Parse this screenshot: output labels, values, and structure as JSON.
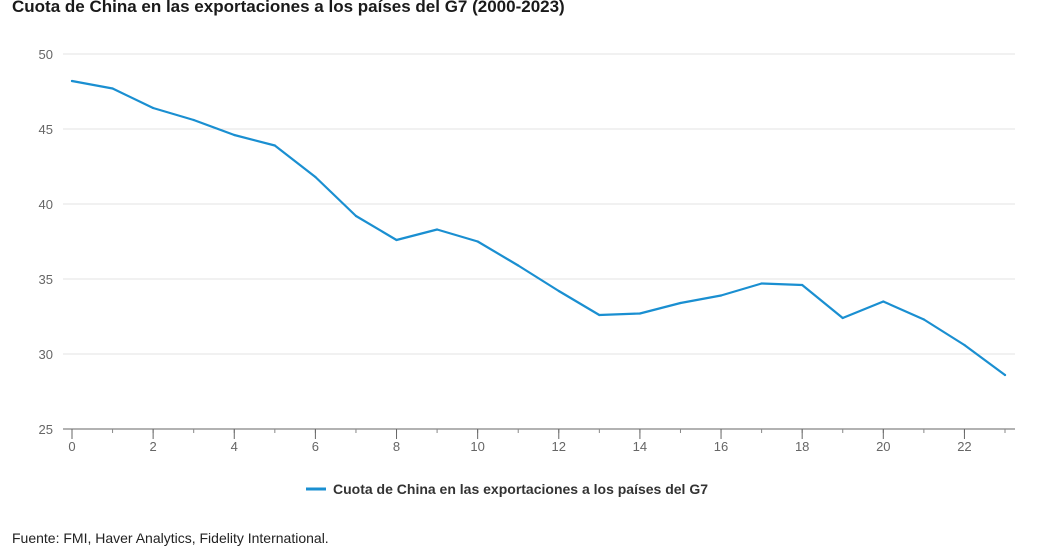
{
  "chart_data": {
    "type": "line",
    "title": "Cuota de China en las exportaciones a los países del G7 (2000-2023)",
    "xlabel": "",
    "ylabel": "",
    "x": [
      0,
      1,
      2,
      3,
      4,
      5,
      6,
      7,
      8,
      9,
      10,
      11,
      12,
      13,
      14,
      15,
      16,
      17,
      18,
      19,
      20,
      21,
      22,
      23
    ],
    "series": [
      {
        "name": "Cuota de China en las exportaciones a los países del G7",
        "color": "#1a8fd1",
        "values": [
          48.2,
          47.7,
          46.4,
          45.6,
          44.6,
          43.9,
          41.8,
          39.2,
          37.6,
          38.3,
          37.5,
          35.9,
          34.2,
          32.6,
          32.7,
          33.4,
          33.9,
          34.7,
          34.6,
          32.4,
          33.5,
          32.3,
          30.6,
          28.6
        ]
      }
    ],
    "xlim": [
      0,
      23
    ],
    "ylim": [
      25,
      50
    ],
    "x_ticks": [
      0,
      2,
      4,
      6,
      8,
      10,
      12,
      14,
      16,
      18,
      20,
      22
    ],
    "y_ticks": [
      25,
      30,
      35,
      40,
      45,
      50
    ],
    "grid": true,
    "legend_position": "bottom-center"
  },
  "source": "Fuente: FMI, Haver Analytics, Fidelity International."
}
